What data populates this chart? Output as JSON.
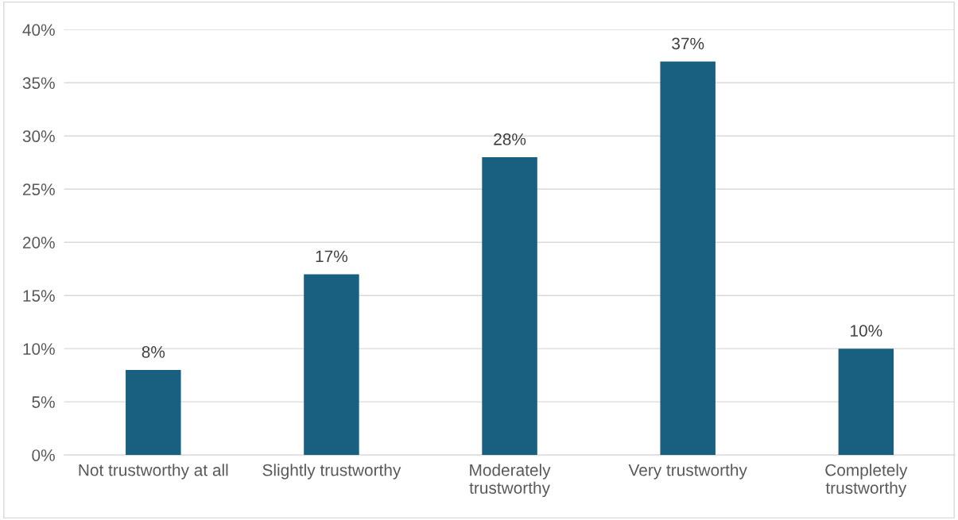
{
  "chart_data": {
    "type": "bar",
    "categories": [
      "Not trustworthy at all",
      "Slightly trustworthy",
      "Moderately\ntrustworthy",
      "Very trustworthy",
      "Completely\ntrustworthy"
    ],
    "values": [
      8,
      17,
      28,
      37,
      10
    ],
    "color": "#185f80",
    "ylim": [
      0,
      40
    ],
    "yticks": [
      {
        "value": 0,
        "label": "0%"
      },
      {
        "value": 5,
        "label": "5%"
      },
      {
        "value": 10,
        "label": "10%"
      },
      {
        "value": 15,
        "label": "15%"
      },
      {
        "value": 20,
        "label": "20%"
      },
      {
        "value": 25,
        "label": "25%"
      },
      {
        "value": 30,
        "label": "30%"
      },
      {
        "value": 35,
        "label": "35%"
      },
      {
        "value": 40,
        "label": "40%"
      }
    ],
    "value_labels": [
      "8%",
      "17%",
      "28%",
      "37%",
      "10%"
    ],
    "grid": "y",
    "legend": false
  }
}
